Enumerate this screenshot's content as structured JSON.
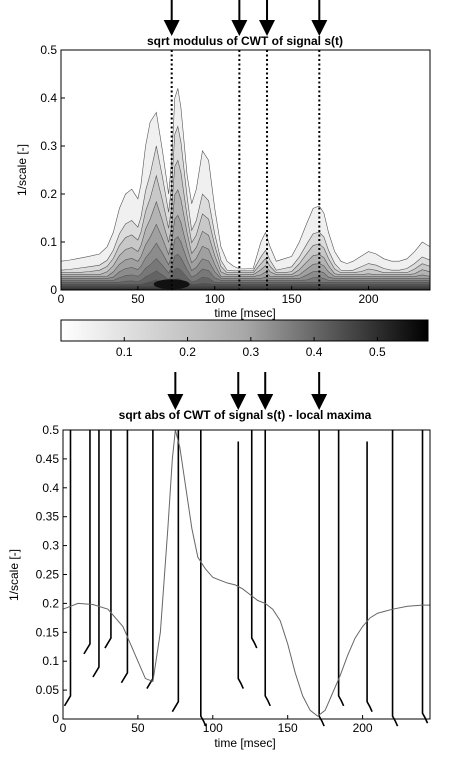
{
  "chart_data": [
    {
      "type": "contour",
      "title": "sqrt modulus of CWT of signal s(t)",
      "xlabel": "time [msec]",
      "ylabel": "1/scale [-]",
      "xlim": [
        0,
        240
      ],
      "ylim": [
        0,
        0.5
      ],
      "xticks": [
        0,
        50,
        100,
        150,
        200
      ],
      "yticks": [
        0,
        0.1,
        0.2,
        0.3,
        0.4,
        0.5
      ],
      "marker_times": [
        72,
        116,
        134,
        168
      ],
      "envelope": {
        "t": [
          0,
          5,
          10,
          18,
          25,
          30,
          34,
          38,
          42,
          46,
          50,
          52,
          55,
          58,
          62,
          66,
          70,
          72,
          74,
          76,
          78,
          82,
          85,
          88,
          92,
          96,
          100,
          104,
          108,
          112,
          116,
          120,
          125,
          130,
          133,
          136,
          140,
          145,
          150,
          155,
          160,
          164,
          168,
          171,
          174,
          178,
          182,
          186,
          190,
          195,
          200,
          205,
          210,
          215,
          220,
          225,
          230,
          235,
          240
        ],
        "levels": [
          0.06,
          0.062,
          0.065,
          0.07,
          0.075,
          0.09,
          0.12,
          0.17,
          0.2,
          0.21,
          0.19,
          0.22,
          0.3,
          0.35,
          0.37,
          0.29,
          0.2,
          0.27,
          0.4,
          0.42,
          0.38,
          0.24,
          0.18,
          0.21,
          0.29,
          0.27,
          0.17,
          0.09,
          0.06,
          0.05,
          0.04,
          0.04,
          0.045,
          0.1,
          0.12,
          0.09,
          0.06,
          0.065,
          0.07,
          0.1,
          0.14,
          0.17,
          0.175,
          0.16,
          0.12,
          0.08,
          0.06,
          0.055,
          0.06,
          0.07,
          0.08,
          0.075,
          0.065,
          0.06,
          0.06,
          0.065,
          0.08,
          0.1,
          0.09
        ]
      },
      "colorbar": {
        "range": [
          0,
          0.58
        ],
        "ticks": [
          0.1,
          0.2,
          0.3,
          0.4,
          0.5
        ]
      }
    },
    {
      "type": "line",
      "title": "sqrt abs of CWT of signal s(t) - local maxima",
      "xlabel": "time [msec]",
      "ylabel": "1/scale [-]",
      "xlim": [
        0,
        245
      ],
      "ylim": [
        0,
        0.5
      ],
      "xticks": [
        0,
        50,
        100,
        150,
        200
      ],
      "yticks": [
        0,
        0.05,
        0.1,
        0.15,
        0.2,
        0.25,
        0.3,
        0.35,
        0.4,
        0.45,
        0.5
      ],
      "marker_times": [
        75,
        117,
        135,
        171
      ],
      "signal": {
        "x": [
          0,
          10,
          20,
          30,
          40,
          45,
          50,
          55,
          60,
          65,
          70,
          73,
          75,
          78,
          82,
          86,
          90,
          95,
          100,
          105,
          110,
          115,
          120,
          125,
          130,
          135,
          140,
          145,
          150,
          155,
          160,
          165,
          170,
          175,
          180,
          185,
          190,
          195,
          200,
          205,
          210,
          220,
          230,
          240,
          245
        ],
        "y": [
          0.19,
          0.2,
          0.198,
          0.19,
          0.16,
          0.13,
          0.1,
          0.07,
          0.065,
          0.15,
          0.33,
          0.45,
          0.5,
          0.47,
          0.4,
          0.33,
          0.28,
          0.26,
          0.245,
          0.24,
          0.235,
          0.232,
          0.225,
          0.215,
          0.205,
          0.2,
          0.19,
          0.17,
          0.13,
          0.08,
          0.04,
          0.015,
          0.005,
          0.015,
          0.045,
          0.075,
          0.11,
          0.14,
          0.16,
          0.175,
          0.183,
          0.19,
          0.195,
          0.197,
          0.197
        ]
      },
      "maxima_lines": [
        {
          "t": 5,
          "ybot": 0.04,
          "ytop": 0.5
        },
        {
          "t": 18,
          "ybot": 0.13,
          "ytop": 0.5
        },
        {
          "t": 24,
          "ybot": 0.09,
          "ytop": 0.5
        },
        {
          "t": 32,
          "ybot": 0.14,
          "ytop": 0.5
        },
        {
          "t": 43,
          "ybot": 0.08,
          "ytop": 0.5
        },
        {
          "t": 60,
          "ybot": 0.07,
          "ytop": 0.5
        },
        {
          "t": 77,
          "ybot": 0.03,
          "ytop": 0.5
        },
        {
          "t": 92,
          "ybot": 0.005,
          "ytop": 0.5
        },
        {
          "t": 117,
          "ybot": 0.07,
          "ytop": 0.48
        },
        {
          "t": 126,
          "ybot": 0.14,
          "ytop": 0.5
        },
        {
          "t": 135,
          "ybot": 0.04,
          "ytop": 0.5
        },
        {
          "t": 171,
          "ybot": 0.005,
          "ytop": 0.5
        },
        {
          "t": 184,
          "ybot": 0.04,
          "ytop": 0.5
        },
        {
          "t": 203,
          "ybot": 0.03,
          "ytop": 0.48
        },
        {
          "t": 220,
          "ybot": 0.005,
          "ytop": 0.5
        },
        {
          "t": 240,
          "ybot": 0.01,
          "ytop": 0.5
        }
      ]
    }
  ]
}
